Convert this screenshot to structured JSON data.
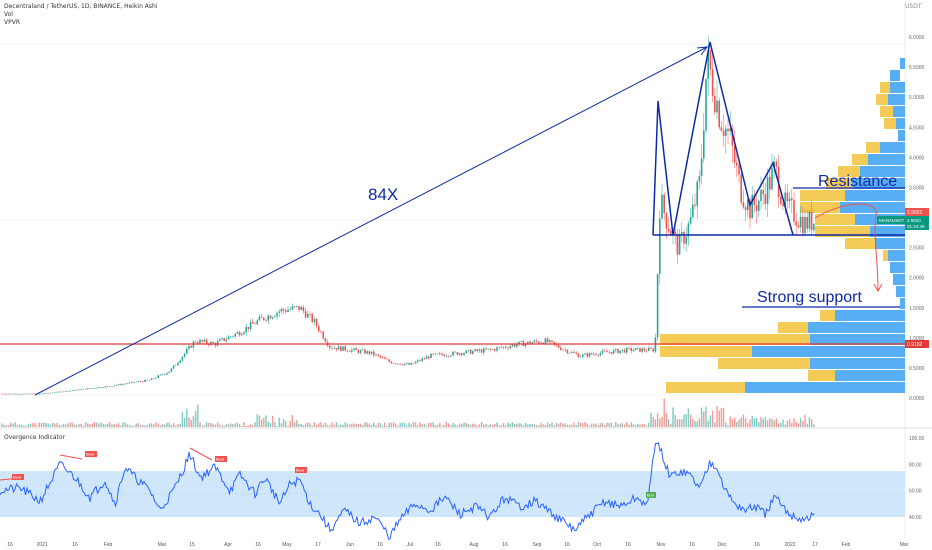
{
  "header": {
    "title": "Decentraland / TetherUS, 1D, BINANCE, Heikin Ashi",
    "vol": "Vol",
    "vpvr": "VPVR",
    "currency": "USDT"
  },
  "colors": {
    "up": "#26a69a",
    "down": "#ef5350",
    "annotation": "#0d2aa6",
    "hline": "#e53935",
    "vp_blue": "#42a5f5",
    "vp_yellow": "#f5c542",
    "osc_line": "#2962ff",
    "osc_band": "#cfe6fb"
  },
  "annotations": {
    "growth": "84X",
    "resistance": "Resistance",
    "support": "Strong support"
  },
  "oscillator": {
    "title": "Overgence Indicator",
    "bear": "Bear",
    "bull": "Bull"
  },
  "tags": {
    "price": "2.9921",
    "ticker": "MANAUSDT",
    "ticker_val": "2.9810",
    "timer": "01:24:49",
    "level": "0.9182"
  },
  "chart_data": {
    "type": "candlestick",
    "title": "Decentraland / TetherUS, 1D, BINANCE, Heikin Ashi",
    "ylim": [
      -0.2,
      6.2
    ],
    "yticks": [
      "6.0000",
      "5.5000",
      "5.0000",
      "4.5000",
      "4.0000",
      "3.5000",
      "3.0000",
      "2.5000",
      "2.0000",
      "1.5000",
      "1.0000",
      "0.5000",
      "0.0000"
    ],
    "xticks": [
      "16",
      "2021",
      "16",
      "Feb",
      "Mar",
      "15",
      "Apr",
      "16",
      "May",
      "17",
      "Jun",
      "16",
      "Jul",
      "16",
      "Aug",
      "16",
      "Sep",
      "16",
      "Oct",
      "16",
      "Nov",
      "16",
      "Dec",
      "16",
      "2022",
      "17",
      "Feb",
      "Mar"
    ],
    "price_path": [
      {
        "date": "Dec 2020",
        "close": 0.07
      },
      {
        "date": "Jan 2021",
        "close": 0.09
      },
      {
        "date": "Feb 2021",
        "close": 0.2
      },
      {
        "date": "Mar 2021",
        "close": 0.5
      },
      {
        "date": "Apr 2021",
        "close": 0.9
      },
      {
        "date": "Apr 16",
        "close": 1.1
      },
      {
        "date": "May 2021",
        "close": 1.5
      },
      {
        "date": "May 17",
        "close": 0.8
      },
      {
        "date": "Jun 2021",
        "close": 0.75
      },
      {
        "date": "Jul 2021",
        "close": 0.5
      },
      {
        "date": "Aug 2021",
        "close": 0.7
      },
      {
        "date": "Sep 2021",
        "close": 0.9
      },
      {
        "date": "Oct 2021",
        "close": 0.75
      },
      {
        "date": "Oct 28",
        "close": 0.8
      },
      {
        "date": "Oct 29",
        "close": 3.5
      },
      {
        "date": "Nov 2021",
        "close": 2.8
      },
      {
        "date": "Nov 16",
        "close": 3.5
      },
      {
        "date": "Nov 25",
        "close": 5.9
      },
      {
        "date": "Dec 2021",
        "close": 4.0
      },
      {
        "date": "Dec 16",
        "close": 3.2
      },
      {
        "date": "2022",
        "close": 3.4
      },
      {
        "date": "Jan 8",
        "close": 2.95
      }
    ],
    "levels": {
      "resistance": 3.5,
      "neckline": 2.7,
      "support": 1.5,
      "horizontal": 0.9182,
      "last_price": 2.9921
    },
    "oscillator": {
      "yticks": [
        "100.00",
        "80.00",
        "60.00",
        "40.00"
      ],
      "band": [
        30,
        70
      ],
      "bear_signals": 5,
      "bull_signals": 1
    }
  }
}
